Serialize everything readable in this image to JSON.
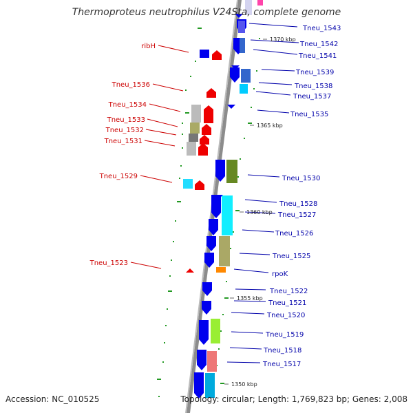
{
  "title": "Thermoproteus neutrophilus V24Sta, complete genome",
  "footer": {
    "accession": "Accession: NC_010525",
    "topology": "Topology: circular; Length: 1,769,823 bp; Genes: 2,008"
  },
  "colors": {
    "cds_blue": "#0000ee",
    "cds_red": "#ee0000",
    "label_blue": "#0000aa",
    "label_red": "#cc0000",
    "backbone": "#8c8c8c",
    "gc_mark": "#229922"
  },
  "scale_ticks": [
    "1370 kbp",
    "1365 kbp",
    "1360 kbp",
    "1355 kbp",
    "1350 kbp"
  ],
  "labels_right": [
    "Tneu_1543",
    "Tneu_1542",
    "Tneu_1541",
    "Tneu_1539",
    "Tneu_1538",
    "Tneu_1537",
    "Tneu_1535",
    "Tneu_1530",
    "Tneu_1528",
    "Tneu_1527",
    "Tneu_1526",
    "Tneu_1525",
    "rpoK",
    "Tneu_1522",
    "Tneu_1521",
    "Tneu_1520",
    "Tneu_1519",
    "Tneu_1518",
    "Tneu_1517"
  ],
  "labels_left": [
    "ribH",
    "Tneu_1536",
    "Tneu_1534",
    "Tneu_1533",
    "Tneu_1532",
    "Tneu_1531",
    "Tneu_1529",
    "Tneu_1523"
  ]
}
